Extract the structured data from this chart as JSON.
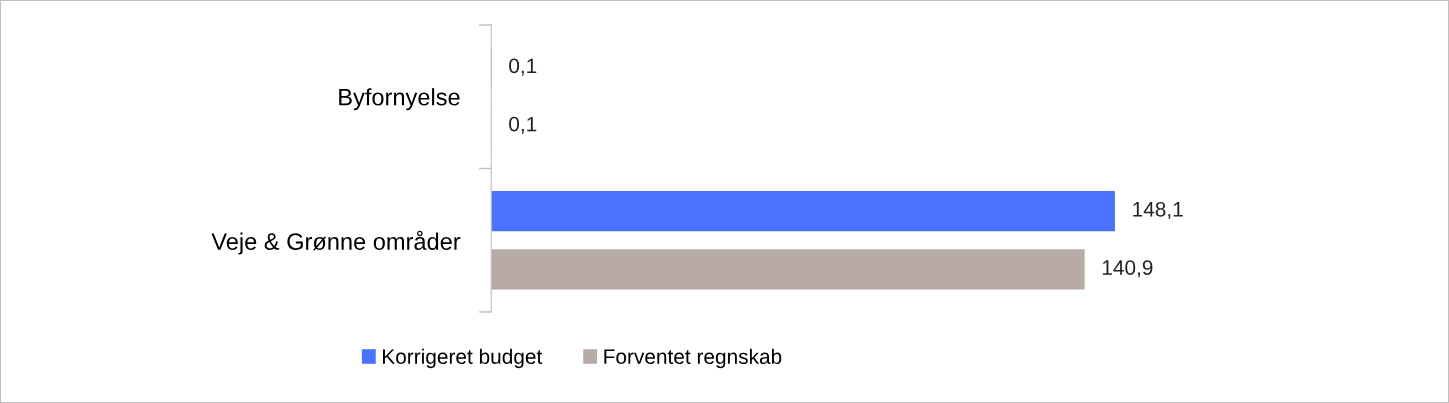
{
  "chart_data": {
    "type": "bar",
    "orientation": "horizontal",
    "categories": [
      "Byfornyelse",
      "Veje & Grønne områder"
    ],
    "series": [
      {
        "name": "Korrigeret budget",
        "color": "#4a72ff",
        "values": [
          0.1,
          148.1
        ],
        "value_labels": [
          "0,1",
          "148,1"
        ]
      },
      {
        "name": "Forventet regnskab",
        "color": "#b8aaa5",
        "values": [
          0.1,
          140.9
        ],
        "value_labels": [
          "0,1",
          "140,9"
        ]
      }
    ],
    "legend": "bottom"
  }
}
